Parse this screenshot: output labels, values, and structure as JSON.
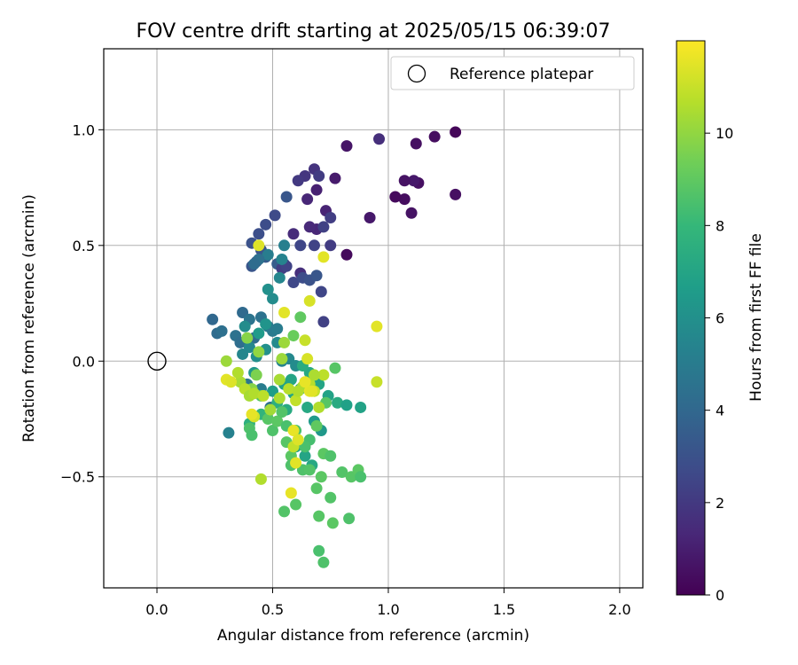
{
  "chart_data": {
    "type": "scatter",
    "title": "FOV centre drift starting at 2025/05/15 06:39:07",
    "xlabel": "Angular distance from reference (arcmin)",
    "ylabel": "Rotation from reference (arcmin)",
    "xlim": [
      -0.23,
      2.1
    ],
    "ylim": [
      -0.98,
      1.35
    ],
    "xticks": [
      0.0,
      0.5,
      1.0,
      1.5,
      2.0
    ],
    "xtick_labels": [
      "0.0",
      "0.5",
      "1.0",
      "1.5",
      "2.0"
    ],
    "yticks": [
      -0.5,
      0.0,
      0.5,
      1.0
    ],
    "ytick_labels": [
      "−0.5",
      "0.0",
      "0.5",
      "1.0"
    ],
    "grid": true,
    "legend": {
      "placement": "top-right",
      "entries": [
        "Reference platepar"
      ]
    },
    "reference_point": {
      "x": 0.0,
      "y": 0.0,
      "label": "Reference platepar",
      "marker": "open-circle"
    },
    "colorbar": {
      "label": "Hours from first FF file",
      "range": [
        0,
        12
      ],
      "ticks": [
        0,
        2,
        4,
        6,
        8,
        10
      ],
      "tick_labels": [
        "0",
        "2",
        "4",
        "6",
        "8",
        "10"
      ],
      "colormap": "viridis",
      "stops": [
        "#440154",
        "#482878",
        "#3e4a89",
        "#31688e",
        "#26828e",
        "#1f9e89",
        "#35b779",
        "#6ece58",
        "#b5de2b",
        "#fde725"
      ]
    },
    "series": [
      {
        "x": [
          1.29,
          1.2,
          1.12,
          0.96,
          0.82,
          1.29,
          1.13,
          1.11,
          1.07,
          1.07,
          1.03,
          1.1,
          0.92,
          0.77,
          0.82,
          0.69,
          0.73,
          0.69,
          0.66,
          0.59,
          0.62,
          0.65
        ],
        "y": [
          0.99,
          0.97,
          0.94,
          0.96,
          0.93,
          0.72,
          0.77,
          0.78,
          0.78,
          0.7,
          0.71,
          0.64,
          0.62,
          0.79,
          0.46,
          0.74,
          0.65,
          0.57,
          0.58,
          0.55,
          0.38,
          0.7
        ],
        "hours": [
          0.2,
          0.4,
          0.5,
          1.6,
          0.7,
          0.5,
          0.5,
          0.8,
          0.6,
          0.4,
          0.3,
          0.6,
          0.8,
          0.9,
          0.3,
          1.1,
          1.2,
          1.3,
          1.4,
          1.5,
          1.6,
          1.3
        ]
      },
      {
        "x": [
          0.68,
          0.64,
          0.61,
          0.7,
          0.75,
          0.72,
          0.68,
          0.62,
          0.56,
          0.55,
          0.51,
          0.47,
          0.44,
          0.41,
          0.45,
          0.41,
          0.43,
          0.47,
          0.52,
          0.54,
          0.56,
          0.59,
          0.63,
          0.66,
          0.69,
          0.71,
          0.72,
          0.75
        ],
        "y": [
          0.83,
          0.8,
          0.78,
          0.8,
          0.62,
          0.58,
          0.5,
          0.5,
          0.71,
          0.42,
          0.63,
          0.59,
          0.55,
          0.51,
          0.48,
          0.41,
          0.43,
          0.45,
          0.42,
          0.4,
          0.41,
          0.34,
          0.36,
          0.35,
          0.37,
          0.3,
          0.17,
          0.5
        ],
        "hours": [
          1.8,
          1.9,
          2.0,
          2.1,
          2.2,
          2.3,
          2.4,
          2.5,
          3.2,
          2.6,
          2.7,
          2.8,
          2.9,
          3.0,
          3.1,
          3.2,
          3.3,
          3.4,
          3.5,
          2.2,
          2.4,
          2.6,
          2.8,
          3.0,
          3.2,
          2.5,
          2.3,
          2.1
        ]
      },
      {
        "x": [
          0.24,
          0.26,
          0.28,
          0.34,
          0.37,
          0.36,
          0.4,
          0.42,
          0.45,
          0.48,
          0.5,
          0.52,
          0.55,
          0.54,
          0.48,
          0.44,
          0.42,
          0.4,
          0.37,
          0.38,
          0.43,
          0.47,
          0.52,
          0.54,
          0.57,
          0.6,
          0.49,
          0.45,
          0.39,
          0.31
        ],
        "y": [
          0.18,
          0.12,
          0.13,
          0.11,
          0.21,
          0.08,
          0.18,
          0.1,
          0.19,
          0.15,
          0.13,
          0.14,
          0.5,
          0.44,
          0.46,
          0.44,
          0.42,
          0.06,
          0.03,
          0.15,
          0.02,
          0.05,
          0.08,
          0.0,
          0.01,
          -0.02,
          -0.2,
          -0.12,
          -0.1,
          -0.31
        ],
        "hours": [
          4.0,
          4.2,
          4.4,
          4.5,
          4.1,
          4.3,
          4.6,
          4.2,
          4.5,
          4.8,
          4.9,
          5.0,
          5.2,
          5.4,
          5.1,
          4.4,
          4.2,
          5.6,
          5.5,
          5.8,
          5.9,
          6.0,
          5.7,
          5.4,
          5.6,
          5.8,
          4.5,
          5.0,
          4.7,
          5.3
        ]
      },
      {
        "x": [
          0.48,
          0.5,
          0.53,
          0.47,
          0.44,
          0.42,
          0.5,
          0.55,
          0.58,
          0.62,
          0.65,
          0.68,
          0.71,
          0.74,
          0.78,
          0.82,
          0.88,
          0.7,
          0.66,
          0.63,
          0.59,
          0.56,
          0.52,
          0.6,
          0.64,
          0.67,
          0.4,
          0.45
        ],
        "y": [
          0.31,
          0.27,
          0.36,
          0.16,
          0.12,
          -0.05,
          -0.13,
          -0.1,
          -0.08,
          -0.12,
          -0.2,
          -0.26,
          -0.3,
          -0.15,
          -0.18,
          -0.19,
          -0.2,
          -0.1,
          -0.05,
          -0.02,
          -0.14,
          -0.21,
          -0.18,
          -0.37,
          -0.41,
          -0.45,
          -0.27,
          -0.23
        ],
        "hours": [
          6.0,
          5.8,
          5.5,
          6.2,
          6.5,
          6.3,
          6.6,
          6.8,
          7.0,
          6.7,
          7.2,
          6.5,
          6.4,
          6.9,
          7.3,
          6.8,
          6.9,
          7.0,
          7.2,
          7.4,
          7.1,
          7.3,
          7.5,
          6.8,
          7.0,
          7.2,
          7.6,
          7.8
        ]
      },
      {
        "x": [
          0.4,
          0.41,
          0.45,
          0.48,
          0.5,
          0.52,
          0.54,
          0.56,
          0.58,
          0.6,
          0.63,
          0.66,
          0.69,
          0.72,
          0.75,
          0.8,
          0.84,
          0.87,
          0.88,
          0.83,
          0.75,
          0.7,
          0.76,
          0.7,
          0.72,
          0.69,
          0.6,
          0.55,
          0.71,
          0.66,
          0.64,
          0.58,
          0.56,
          0.73,
          0.77,
          0.62,
          0.59
        ],
        "y": [
          -0.29,
          -0.32,
          -0.15,
          -0.25,
          -0.3,
          -0.26,
          -0.22,
          -0.35,
          -0.41,
          -0.3,
          -0.47,
          -0.47,
          -0.55,
          -0.4,
          -0.41,
          -0.48,
          -0.5,
          -0.47,
          -0.5,
          -0.68,
          -0.59,
          -0.67,
          -0.7,
          -0.82,
          -0.87,
          -0.28,
          -0.62,
          -0.65,
          -0.5,
          -0.34,
          -0.37,
          -0.45,
          -0.28,
          -0.18,
          -0.03,
          0.19,
          0.11
        ],
        "hours": [
          8.6,
          8.5,
          8.7,
          8.8,
          8.6,
          8.9,
          8.7,
          8.8,
          8.9,
          8.5,
          8.6,
          8.7,
          8.8,
          8.9,
          8.6,
          8.7,
          8.8,
          8.9,
          8.5,
          8.6,
          8.7,
          8.8,
          8.9,
          8.5,
          8.6,
          9.0,
          8.8,
          8.7,
          8.9,
          8.4,
          8.5,
          8.6,
          8.5,
          8.8,
          8.8,
          9.0,
          9.2
        ]
      },
      {
        "x": [
          0.39,
          0.44,
          0.55,
          0.43,
          0.41,
          0.36,
          0.3,
          0.35,
          0.38,
          0.4,
          0.42,
          0.46,
          0.49,
          0.53,
          0.57,
          0.6,
          0.63,
          0.66,
          0.68,
          0.7,
          0.64,
          0.72,
          0.61,
          0.45,
          0.59,
          0.42,
          0.95,
          0.54,
          0.53,
          0.68
        ],
        "y": [
          0.1,
          0.04,
          0.08,
          -0.06,
          -0.12,
          -0.09,
          0.0,
          -0.05,
          -0.12,
          -0.15,
          -0.14,
          -0.15,
          -0.21,
          -0.16,
          -0.12,
          -0.17,
          -0.11,
          -0.1,
          -0.13,
          -0.2,
          0.09,
          -0.06,
          -0.13,
          -0.51,
          -0.37,
          -0.24,
          -0.09,
          0.01,
          -0.08,
          -0.06
        ],
        "hours": [
          9.8,
          10.0,
          10.2,
          9.6,
          9.8,
          10.4,
          10.2,
          10.6,
          10.8,
          10.4,
          10.6,
          10.8,
          10.3,
          10.5,
          10.7,
          10.9,
          10.5,
          10.7,
          10.9,
          10.6,
          11.0,
          10.8,
          10.6,
          10.6,
          10.9,
          11.2,
          11.0,
          10.2,
          10.4,
          10.5
        ]
      },
      {
        "x": [
          0.44,
          0.66,
          0.72,
          0.95,
          0.65,
          0.66,
          0.3,
          0.32,
          0.41,
          0.55,
          0.59,
          0.61,
          0.64,
          0.67,
          0.58,
          0.6
        ],
        "y": [
          0.5,
          0.26,
          0.45,
          0.15,
          0.01,
          -0.13,
          -0.08,
          -0.09,
          -0.23,
          0.21,
          -0.3,
          -0.34,
          -0.09,
          -0.13,
          -0.57,
          -0.44
        ],
        "hours": [
          11.4,
          11.3,
          11.5,
          11.5,
          11.3,
          11.6,
          11.5,
          11.4,
          11.6,
          11.5,
          11.6,
          11.4,
          11.6,
          11.5,
          11.6,
          11.5
        ]
      }
    ]
  }
}
